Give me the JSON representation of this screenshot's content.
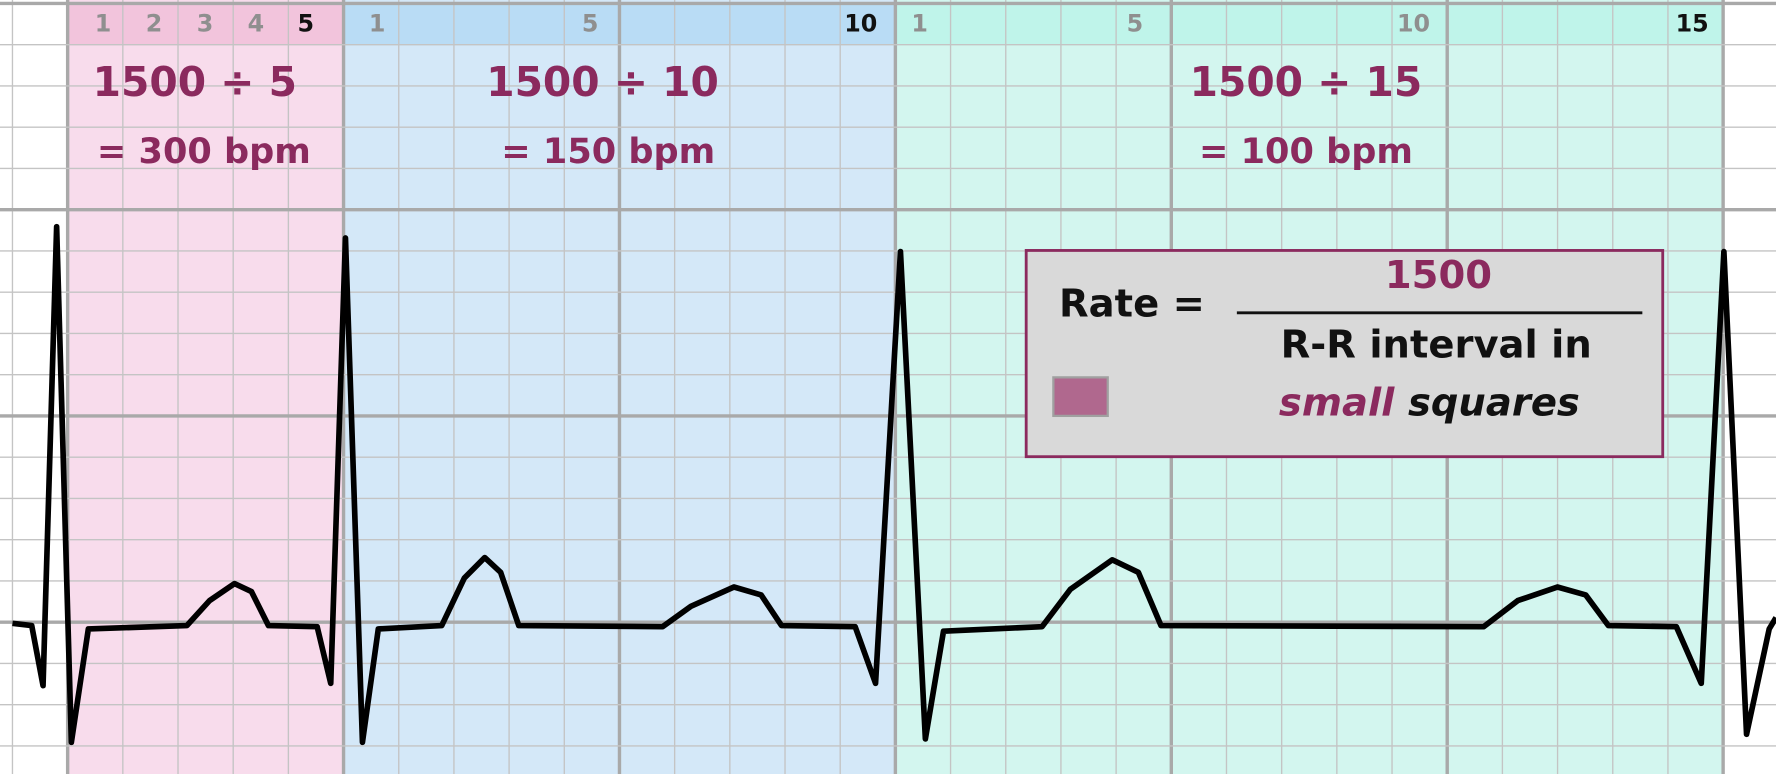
{
  "regions": [
    {
      "numbers": [
        "1",
        "2",
        "3",
        "4",
        "5"
      ],
      "formula": "1500 ÷ 5",
      "result": "= 300 bpm"
    },
    {
      "numbers": [
        "1",
        "5",
        "10"
      ],
      "formula": "1500 ÷ 10",
      "result": "= 150 bpm"
    },
    {
      "numbers": [
        "1",
        "5",
        "10",
        "15"
      ],
      "formula": "1500 ÷ 15",
      "result": "= 100 bpm"
    }
  ],
  "rate_box": {
    "lhs": "Rate =",
    "numerator": "1500",
    "denominator_line1": "R-R interval in",
    "denominator_emph": "small",
    "denominator_end": "squares"
  }
}
